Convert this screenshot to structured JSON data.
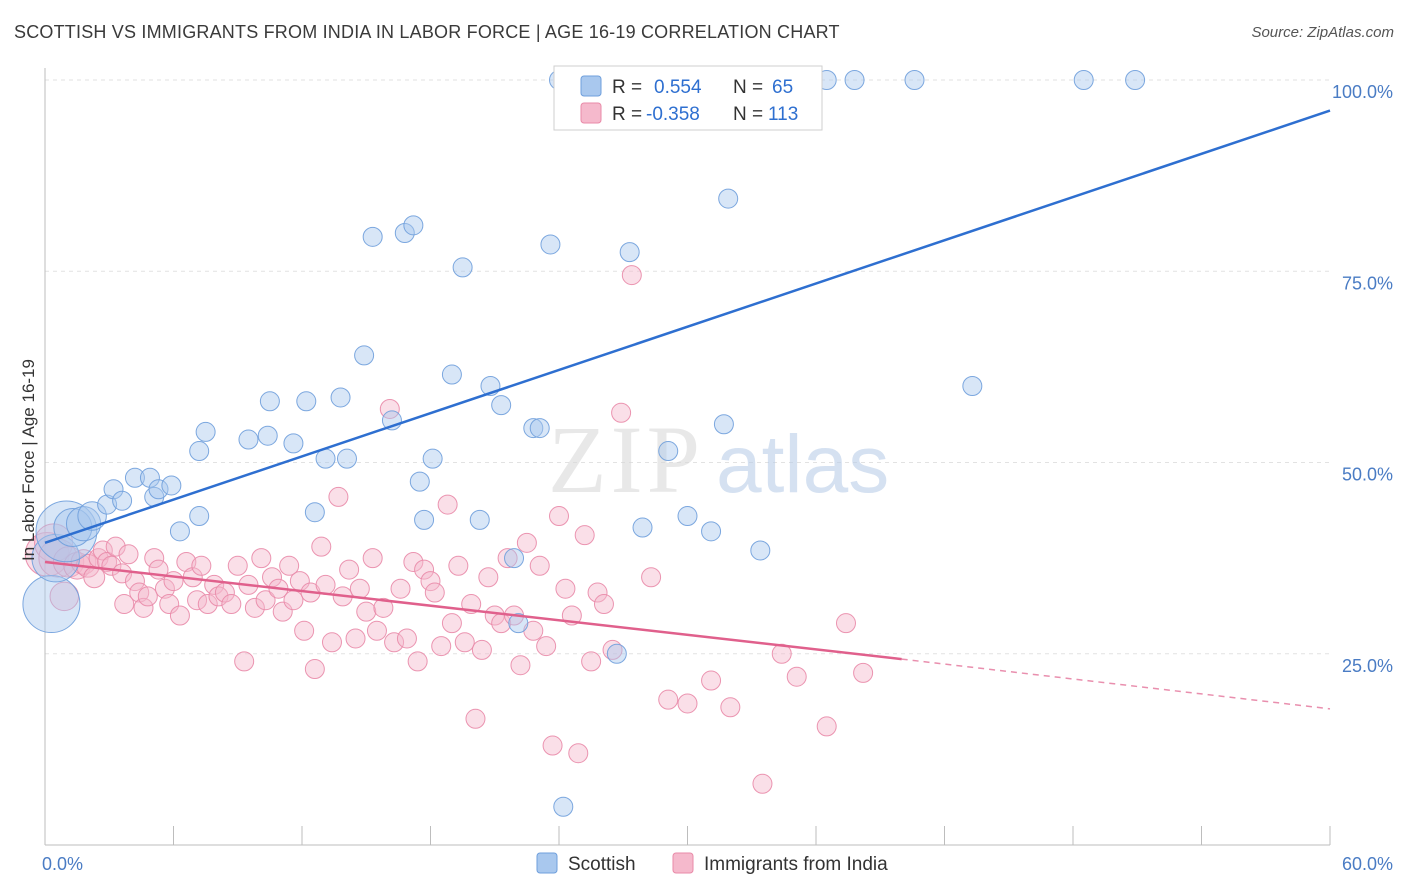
{
  "title": "SCOTTISH VS IMMIGRANTS FROM INDIA IN LABOR FORCE | AGE 16-19 CORRELATION CHART",
  "source": "Source: ZipAtlas.com",
  "watermark": {
    "zip": "ZIP",
    "atlas": "atlas"
  },
  "colors": {
    "blue_fill": "#a9c8ee",
    "blue_stroke": "#6f9fdc",
    "blue_line": "#2e6fd0",
    "pink_fill": "#f5b9cc",
    "pink_stroke": "#e98aa8",
    "pink_line": "#e0608c",
    "axis_text": "#4a7cc4",
    "grid": "#e2e2e2"
  },
  "legend": {
    "r_label": "R =",
    "n_label": "N =",
    "rows": [
      {
        "series": "Scottish",
        "r": "0.554",
        "n": "65"
      },
      {
        "series": "Immigrants from India",
        "r": "-0.358",
        "n": "113"
      }
    ]
  },
  "chart_data": {
    "type": "scatter",
    "title": "SCOTTISH VS IMMIGRANTS FROM INDIA IN LABOR FORCE | AGE 16-19 CORRELATION CHART",
    "xlabel": "",
    "ylabel": "In Labor Force | Age 16-19",
    "xlim": [
      0,
      60
    ],
    "ylim": [
      0,
      102
    ],
    "x_tick_labels": [
      {
        "value": 0,
        "label": "0.0%"
      },
      {
        "value": 60,
        "label": "60.0%"
      }
    ],
    "y_tick_labels": [
      {
        "value": 25,
        "label": "25.0%"
      },
      {
        "value": 50,
        "label": "50.0%"
      },
      {
        "value": 75,
        "label": "75.0%"
      },
      {
        "value": 100,
        "label": "100.0%"
      }
    ],
    "grid": true,
    "legend_position": "bottom-center",
    "series": [
      {
        "name": "Scottish",
        "trend": {
          "x0": 0,
          "y0": 39.5,
          "x1": 60,
          "y1": 96
        },
        "points": [
          [
            0.3,
            31.5,
            3
          ],
          [
            0.5,
            37.5,
            2.5
          ],
          [
            1.0,
            41.0,
            3.2
          ],
          [
            1.3,
            41.5,
            2
          ],
          [
            1.8,
            42.0,
            1.8
          ],
          [
            2.2,
            43.0,
            1.5
          ],
          [
            2.9,
            44.5,
            1
          ],
          [
            3.2,
            46.5,
            1
          ],
          [
            3.6,
            45.0,
            1
          ],
          [
            4.2,
            48.0,
            1
          ],
          [
            4.9,
            48.0,
            1
          ],
          [
            5.1,
            45.5,
            1
          ],
          [
            5.3,
            46.5,
            1
          ],
          [
            5.9,
            47.0,
            1
          ],
          [
            6.3,
            41.0,
            1
          ],
          [
            7.2,
            43.0,
            1
          ],
          [
            7.2,
            51.5,
            1
          ],
          [
            7.5,
            54.0,
            1
          ],
          [
            9.5,
            53.0,
            1
          ],
          [
            10.4,
            53.5,
            1
          ],
          [
            10.5,
            58.0,
            1
          ],
          [
            11.6,
            52.5,
            1
          ],
          [
            12.2,
            58.0,
            1
          ],
          [
            12.6,
            43.5,
            1
          ],
          [
            13.1,
            50.5,
            1
          ],
          [
            13.8,
            58.5,
            1
          ],
          [
            14.1,
            50.5,
            1
          ],
          [
            14.9,
            64.0,
            1
          ],
          [
            15.3,
            79.5,
            1
          ],
          [
            16.2,
            55.5,
            1
          ],
          [
            16.8,
            80.0,
            1
          ],
          [
            17.2,
            81.0,
            1
          ],
          [
            17.5,
            47.5,
            1
          ],
          [
            17.7,
            42.5,
            1
          ],
          [
            18.1,
            50.5,
            1
          ],
          [
            19.0,
            61.5,
            1
          ],
          [
            19.5,
            75.5,
            1
          ],
          [
            20.3,
            42.5,
            1
          ],
          [
            20.8,
            60.0,
            1
          ],
          [
            21.3,
            57.5,
            1
          ],
          [
            21.9,
            37.5,
            1
          ],
          [
            22.1,
            29.0,
            1
          ],
          [
            22.8,
            54.5,
            1
          ],
          [
            23.1,
            54.5,
            1
          ],
          [
            23.6,
            78.5,
            1
          ],
          [
            24.2,
            5.0,
            1
          ],
          [
            26.7,
            25.0,
            1
          ],
          [
            27.3,
            77.5,
            1
          ],
          [
            27.9,
            41.5,
            1
          ],
          [
            29.1,
            51.5,
            1
          ],
          [
            30.0,
            43.0,
            1
          ],
          [
            31.1,
            41.0,
            1
          ],
          [
            31.7,
            55.0,
            1
          ],
          [
            31.9,
            84.5,
            1
          ],
          [
            33.4,
            38.5,
            1
          ],
          [
            36.5,
            100,
            1
          ],
          [
            37.8,
            100,
            1
          ],
          [
            40.6,
            100,
            1
          ],
          [
            43.3,
            60.0,
            1
          ],
          [
            48.5,
            100,
            1
          ],
          [
            50.9,
            100,
            1
          ],
          [
            24.0,
            100,
            1
          ],
          [
            28.5,
            100,
            1
          ],
          [
            30.2,
            100,
            1
          ],
          [
            35.2,
            100,
            1
          ]
        ]
      },
      {
        "name": "Immigrants from India",
        "trend": {
          "x0": 0,
          "y0": 37.0,
          "x1": 40,
          "y1": 24.3,
          "dash_x1": 60,
          "dash_y1": 17.8
        },
        "points": [
          [
            0.1,
            38.0,
            2.3
          ],
          [
            0.4,
            39.5,
            2
          ],
          [
            0.6,
            37.5,
            2
          ],
          [
            0.9,
            32.5,
            1.5
          ],
          [
            1.1,
            37.0,
            1.6
          ],
          [
            1.5,
            36.5,
            1.4
          ],
          [
            1.8,
            37.0,
            1.3
          ],
          [
            2.0,
            36.5,
            1.2
          ],
          [
            2.3,
            35.0,
            1.1
          ],
          [
            2.5,
            37.5,
            1
          ],
          [
            2.7,
            38.5,
            1
          ],
          [
            2.9,
            37.0,
            1
          ],
          [
            3.1,
            36.5,
            1
          ],
          [
            3.3,
            39.0,
            1
          ],
          [
            3.6,
            35.5,
            1
          ],
          [
            3.7,
            31.5,
            1
          ],
          [
            3.9,
            38.0,
            1
          ],
          [
            4.2,
            34.5,
            1
          ],
          [
            4.4,
            33.0,
            1
          ],
          [
            4.6,
            31.0,
            1
          ],
          [
            4.8,
            32.5,
            1
          ],
          [
            5.1,
            37.5,
            1
          ],
          [
            5.3,
            36.0,
            1
          ],
          [
            5.6,
            33.5,
            1
          ],
          [
            5.8,
            31.5,
            1
          ],
          [
            6.0,
            34.5,
            1
          ],
          [
            6.3,
            30.0,
            1
          ],
          [
            6.6,
            37.0,
            1
          ],
          [
            6.9,
            35.0,
            1
          ],
          [
            7.1,
            32.0,
            1
          ],
          [
            7.3,
            36.5,
            1
          ],
          [
            7.6,
            31.5,
            1
          ],
          [
            7.9,
            34.0,
            1
          ],
          [
            8.1,
            32.5,
            1
          ],
          [
            8.4,
            33.0,
            1
          ],
          [
            8.7,
            31.5,
            1
          ],
          [
            9.0,
            36.5,
            1
          ],
          [
            9.3,
            24.0,
            1
          ],
          [
            9.5,
            34.0,
            1
          ],
          [
            9.8,
            31.0,
            1
          ],
          [
            10.1,
            37.5,
            1
          ],
          [
            10.3,
            32.0,
            1
          ],
          [
            10.6,
            35.0,
            1
          ],
          [
            10.9,
            33.5,
            1
          ],
          [
            11.1,
            30.5,
            1
          ],
          [
            11.4,
            36.5,
            1
          ],
          [
            11.6,
            32.0,
            1
          ],
          [
            11.9,
            34.5,
            1
          ],
          [
            12.1,
            28.0,
            1
          ],
          [
            12.4,
            33.0,
            1
          ],
          [
            12.6,
            23.0,
            1
          ],
          [
            12.9,
            39.0,
            1
          ],
          [
            13.1,
            34.0,
            1
          ],
          [
            13.4,
            26.5,
            1
          ],
          [
            13.7,
            45.5,
            1
          ],
          [
            13.9,
            32.5,
            1
          ],
          [
            14.2,
            36.0,
            1
          ],
          [
            14.5,
            27.0,
            1
          ],
          [
            14.7,
            33.5,
            1
          ],
          [
            15.0,
            30.5,
            1
          ],
          [
            15.3,
            37.5,
            1
          ],
          [
            15.5,
            28.0,
            1
          ],
          [
            15.8,
            31.0,
            1
          ],
          [
            16.1,
            57.0,
            1
          ],
          [
            16.3,
            26.5,
            1
          ],
          [
            16.6,
            33.5,
            1
          ],
          [
            16.9,
            27.0,
            1
          ],
          [
            17.2,
            37.0,
            1
          ],
          [
            17.4,
            24.0,
            1
          ],
          [
            17.7,
            36.0,
            1
          ],
          [
            18.0,
            34.5,
            1
          ],
          [
            18.2,
            33.0,
            1
          ],
          [
            18.5,
            26.0,
            1
          ],
          [
            18.8,
            44.5,
            1
          ],
          [
            19.0,
            29.0,
            1
          ],
          [
            19.3,
            36.5,
            1
          ],
          [
            19.6,
            26.5,
            1
          ],
          [
            19.9,
            31.5,
            1
          ],
          [
            20.1,
            16.5,
            1
          ],
          [
            20.4,
            25.5,
            1
          ],
          [
            20.7,
            35.0,
            1
          ],
          [
            21.0,
            30.0,
            1
          ],
          [
            21.3,
            29.0,
            1
          ],
          [
            21.6,
            37.5,
            1
          ],
          [
            21.9,
            30.0,
            1
          ],
          [
            22.2,
            23.5,
            1
          ],
          [
            22.5,
            39.5,
            1
          ],
          [
            22.8,
            28.0,
            1
          ],
          [
            23.1,
            36.5,
            1
          ],
          [
            23.4,
            26.0,
            1
          ],
          [
            23.7,
            13.0,
            1
          ],
          [
            24.0,
            43.0,
            1
          ],
          [
            24.3,
            33.5,
            1
          ],
          [
            24.6,
            30.0,
            1
          ],
          [
            24.9,
            12.0,
            1
          ],
          [
            25.2,
            40.5,
            1
          ],
          [
            25.5,
            24.0,
            1
          ],
          [
            25.8,
            33.0,
            1
          ],
          [
            26.1,
            31.5,
            1
          ],
          [
            26.5,
            25.5,
            1
          ],
          [
            26.9,
            56.5,
            1
          ],
          [
            27.4,
            74.5,
            1
          ],
          [
            28.3,
            35.0,
            1
          ],
          [
            29.1,
            19.0,
            1
          ],
          [
            30.0,
            18.5,
            1
          ],
          [
            31.1,
            21.5,
            1
          ],
          [
            32.0,
            18.0,
            1
          ],
          [
            33.5,
            8.0,
            1
          ],
          [
            34.4,
            25.0,
            1
          ],
          [
            35.1,
            22.0,
            1
          ],
          [
            36.5,
            15.5,
            1
          ],
          [
            37.4,
            29.0,
            1
          ],
          [
            38.2,
            22.5,
            1
          ]
        ]
      }
    ]
  },
  "axis": {
    "ylabel": "In Labor Force | Age 16-19"
  }
}
